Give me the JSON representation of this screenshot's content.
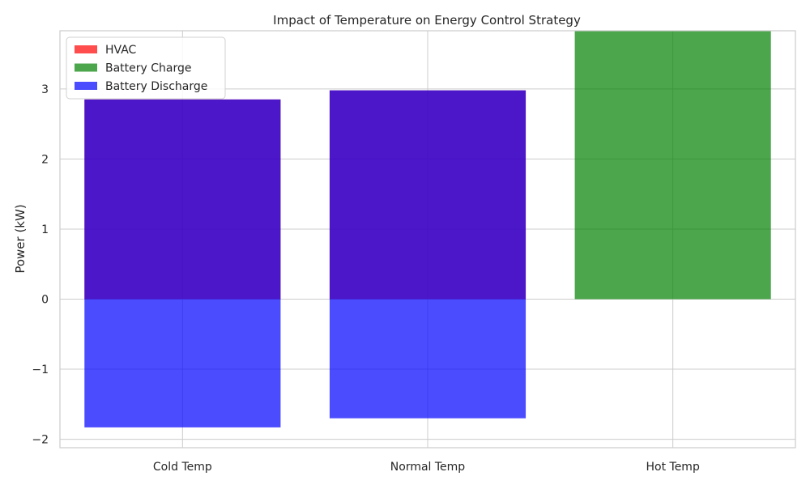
{
  "chart_data": {
    "type": "bar",
    "title": "Impact of Temperature on Energy Control Strategy",
    "xlabel": "",
    "ylabel": "Power (kW)",
    "categories": [
      "Cold Temp",
      "Normal Temp",
      "Hot Temp"
    ],
    "ylim": [
      -2.12,
      3.83
    ],
    "yticks": [
      -2,
      -1,
      0,
      1,
      2,
      3
    ],
    "grid": true,
    "legend_position": "top-left",
    "series": [
      {
        "name": "HVAC",
        "color": "#ff0000",
        "opacity": 0.7,
        "values": [
          2.85,
          2.98,
          0
        ]
      },
      {
        "name": "Battery Charge",
        "color": "#008000",
        "opacity": 0.7,
        "values": [
          0,
          0,
          3.83
        ]
      },
      {
        "name": "Battery Discharge",
        "color": "#0000ff",
        "opacity": 0.7,
        "values": [
          2.85,
          2.98,
          0
        ]
      },
      {
        "name": "Battery Discharge",
        "color": "#0000ff",
        "opacity": 0.7,
        "values": [
          -1.83,
          -1.7,
          0
        ]
      }
    ],
    "legend": [
      {
        "label": "HVAC",
        "color": "#ff0000"
      },
      {
        "label": "Battery Charge",
        "color": "#008000"
      },
      {
        "label": "Battery Discharge",
        "color": "#0000ff"
      }
    ]
  }
}
